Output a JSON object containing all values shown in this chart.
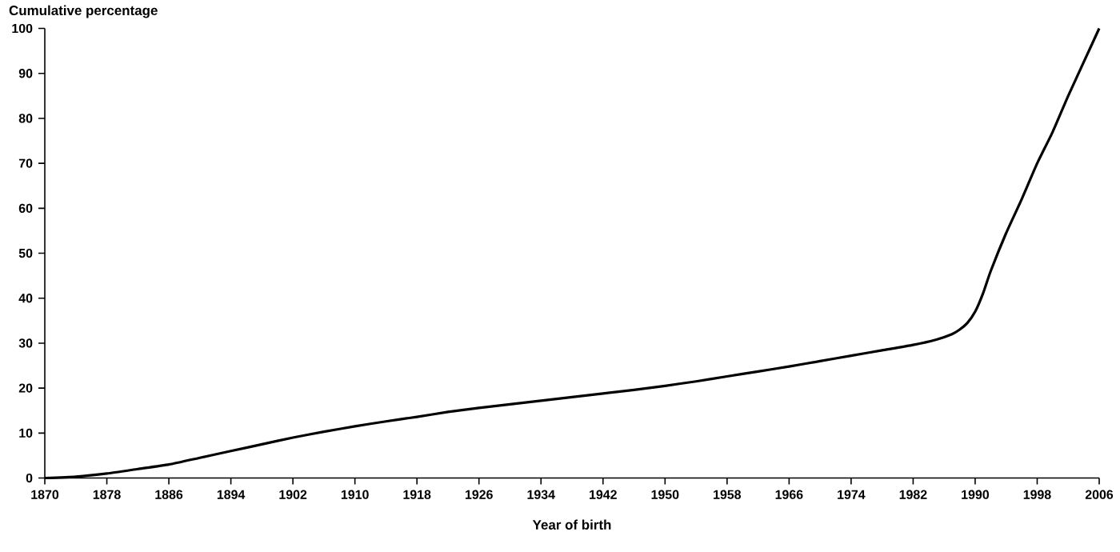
{
  "chart_data": {
    "type": "line",
    "xlabel": "Year of birth",
    "ylabel": "Cumulative percentage",
    "x": [
      1870,
      1874,
      1878,
      1882,
      1886,
      1890,
      1894,
      1898,
      1902,
      1906,
      1910,
      1914,
      1918,
      1922,
      1926,
      1930,
      1934,
      1938,
      1942,
      1946,
      1950,
      1954,
      1958,
      1962,
      1966,
      1970,
      1974,
      1978,
      1982,
      1985,
      1987,
      1988,
      1989,
      1990,
      1991,
      1992,
      1994,
      1996,
      1998,
      2000,
      2002,
      2004,
      2006
    ],
    "series": [
      {
        "color": "#000000",
        "values": [
          0,
          0.3,
          1,
          2,
          3,
          4.5,
          6,
          7.5,
          9,
          10.3,
          11.5,
          12.6,
          13.6,
          14.7,
          15.6,
          16.4,
          17.2,
          18,
          18.8,
          19.6,
          20.5,
          21.5,
          22.6,
          23.7,
          24.8,
          26,
          27.2,
          28.4,
          29.6,
          30.8,
          32,
          33,
          34.5,
          37,
          41,
          46,
          54.5,
          62,
          70,
          77,
          85,
          92.5,
          100
        ]
      }
    ],
    "xlim": [
      1870,
      2006
    ],
    "ylim": [
      0,
      100
    ],
    "xticks": [
      1870,
      1878,
      1886,
      1894,
      1902,
      1910,
      1918,
      1926,
      1934,
      1942,
      1950,
      1958,
      1966,
      1974,
      1982,
      1990,
      1998,
      2006
    ],
    "yticks": [
      0,
      10,
      20,
      30,
      40,
      50,
      60,
      70,
      80,
      90,
      100
    ],
    "grid": false,
    "marker": "none",
    "line_style": "solid"
  }
}
